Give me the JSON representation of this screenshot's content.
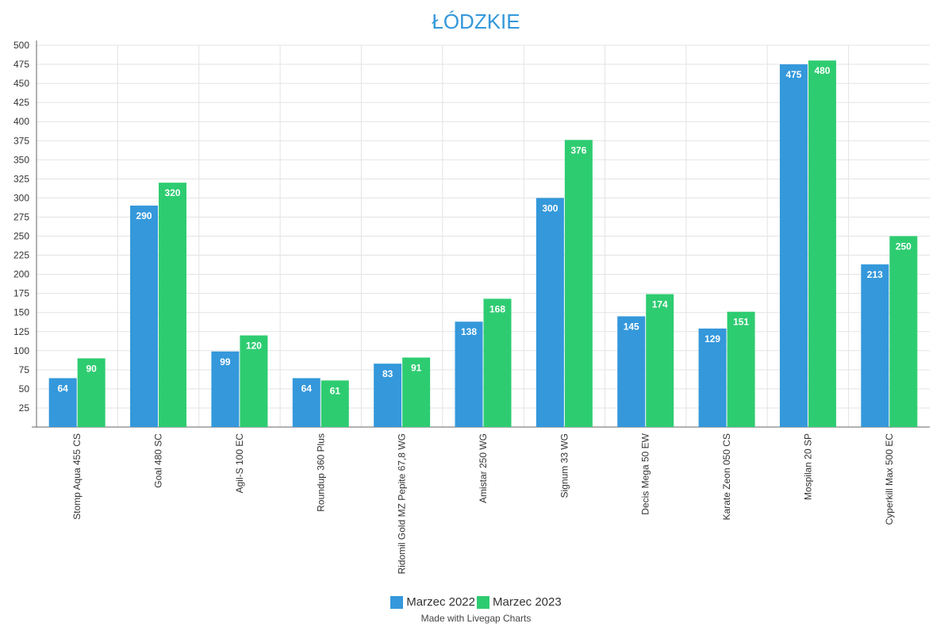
{
  "chart_data": {
    "type": "bar",
    "title": "ŁÓDZKIE",
    "categories": [
      "Stomp Aqua 455 CS",
      "Goal 480 SC",
      "Agil-S 100 EC",
      "Roundup 360 Plus",
      "Ridomil Gold MZ Pepite 67,8 WG",
      "Amistar 250 WG",
      "Signum 33 WG",
      "Decis Mega 50 EW",
      "Karate Zeon 050 CS",
      "Mospilan 20 SP",
      "Cyperkill Max 500 EC"
    ],
    "series": [
      {
        "name": "Marzec 2022",
        "color": "#3498db",
        "values": [
          64,
          290,
          99,
          64,
          83,
          138,
          300,
          145,
          129,
          475,
          213
        ]
      },
      {
        "name": "Marzec 2023",
        "color": "#2ecc71",
        "values": [
          90,
          320,
          120,
          61,
          91,
          168,
          376,
          174,
          151,
          480,
          250
        ]
      }
    ],
    "ylim": [
      0,
      500
    ],
    "yticks": [
      "25",
      "50",
      "75",
      "100",
      "125",
      "150",
      "175",
      "200",
      "225",
      "250",
      "275",
      "300",
      "325",
      "350",
      "375",
      "400",
      "425",
      "450",
      "475",
      "500"
    ],
    "xlabel": "",
    "ylabel": "",
    "grid": true,
    "legend_position": "bottom-center"
  },
  "footer": {
    "credit": "Made with Livegap Charts"
  }
}
